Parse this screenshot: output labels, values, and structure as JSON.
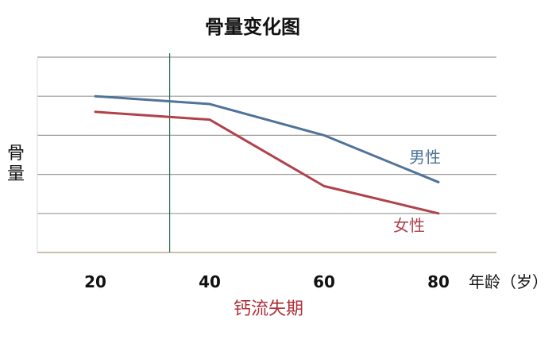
{
  "chart_data": {
    "type": "line",
    "title": "骨量变化图",
    "xlabel": "年龄（岁）",
    "ylabel": "骨量",
    "x": [
      20,
      40,
      60,
      80
    ],
    "xticks": [
      "20",
      "40",
      "60",
      "80"
    ],
    "xlim": [
      20,
      80
    ],
    "ylim": [
      0,
      5
    ],
    "grid": true,
    "series": [
      {
        "name": "男性",
        "values": [
          4.0,
          3.8,
          3.0,
          1.8
        ],
        "color": "#4f7399"
      },
      {
        "name": "女性",
        "values": [
          3.6,
          3.4,
          1.7,
          1.0
        ],
        "color": "#b0424c"
      }
    ],
    "vline": {
      "x": 33,
      "color": "#2e6e52"
    },
    "annotation": {
      "text": "钙流失期",
      "color": "#b0303a"
    }
  }
}
